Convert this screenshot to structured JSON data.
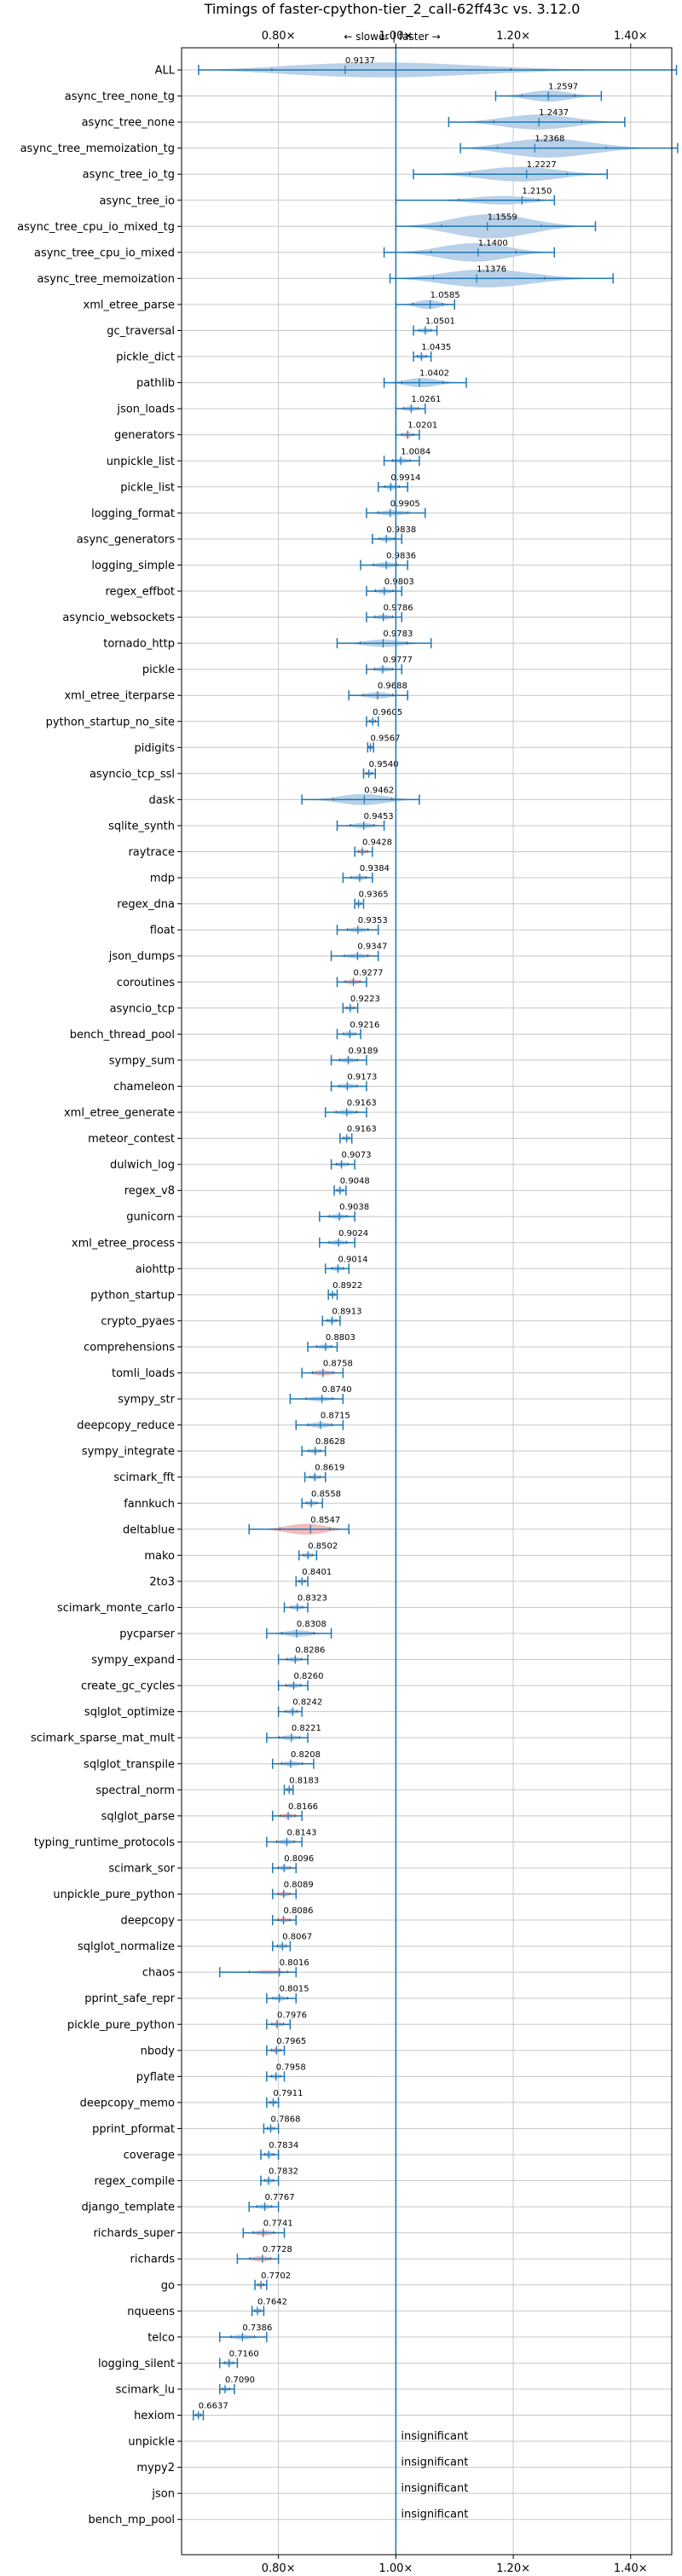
{
  "chart_data": {
    "type": "violin",
    "title": "Timings of faster-cpython-tier_2_call-62ff43c vs. 3.12.0",
    "direction_label": "← slower | faster →",
    "xlim": [
      0.635,
      1.47
    ],
    "xticks": [
      {
        "value": 0.8,
        "label": "0.80×"
      },
      {
        "value": 1.0,
        "label": "1.00×"
      },
      {
        "value": 1.2,
        "label": "1.20×"
      },
      {
        "value": 1.4,
        "label": "1.40×"
      }
    ],
    "grid": true,
    "reference_line": 1.0,
    "colors": {
      "faster": "#b4cfe8",
      "slower": "#f4b6b6",
      "line": "#1f77b4",
      "grid": "#c8c8c8"
    },
    "insignificant_text": "insignificant",
    "rows": [
      {
        "name": "ALL",
        "mean": 0.9137,
        "min": 0.664,
        "max": 1.478,
        "width": 0.09,
        "color": "blue"
      },
      {
        "name": "async_tree_none_tg",
        "mean": 1.2597,
        "min": 1.17,
        "max": 1.35,
        "width": 0.06,
        "color": "blue"
      },
      {
        "name": "async_tree_none",
        "mean": 1.2437,
        "min": 1.09,
        "max": 1.39,
        "width": 0.08,
        "color": "blue"
      },
      {
        "name": "async_tree_memoization_tg",
        "mean": 1.2368,
        "min": 1.11,
        "max": 1.48,
        "width": 0.11,
        "color": "blue"
      },
      {
        "name": "async_tree_io_tg",
        "mean": 1.2227,
        "min": 1.03,
        "max": 1.36,
        "width": 0.08,
        "color": "blue"
      },
      {
        "name": "async_tree_io",
        "mean": 1.215,
        "min": 1.0,
        "max": 1.27,
        "width": 0.06,
        "color": "blue"
      },
      {
        "name": "async_tree_cpu_io_mixed_tg",
        "mean": 1.1559,
        "min": 1.0,
        "max": 1.34,
        "width": 0.13,
        "color": "blue"
      },
      {
        "name": "async_tree_cpu_io_mixed",
        "mean": 1.14,
        "min": 0.98,
        "max": 1.27,
        "width": 0.1,
        "color": "blue"
      },
      {
        "name": "async_tree_memoization",
        "mean": 1.1376,
        "min": 0.99,
        "max": 1.37,
        "width": 0.1,
        "color": "blue"
      },
      {
        "name": "xml_etree_parse",
        "mean": 1.0585,
        "min": 1.0,
        "max": 1.1,
        "width": 0.05,
        "color": "blue"
      },
      {
        "name": "gc_traversal",
        "mean": 1.0501,
        "min": 1.03,
        "max": 1.07,
        "width": 0.025,
        "color": "blue"
      },
      {
        "name": "pickle_dict",
        "mean": 1.0435,
        "min": 1.03,
        "max": 1.06,
        "width": 0.015,
        "color": "blue"
      },
      {
        "name": "pathlib",
        "mean": 1.0402,
        "min": 0.98,
        "max": 1.12,
        "width": 0.05,
        "color": "blue"
      },
      {
        "name": "json_loads",
        "mean": 1.0261,
        "min": 1.0,
        "max": 1.05,
        "width": 0.025,
        "color": "blue"
      },
      {
        "name": "generators",
        "mean": 1.0201,
        "min": 1.0,
        "max": 1.04,
        "width": 0.02,
        "color": "red"
      },
      {
        "name": "unpickle_list",
        "mean": 1.0084,
        "min": 0.98,
        "max": 1.04,
        "width": 0.025,
        "color": "blue"
      },
      {
        "name": "pickle_list",
        "mean": 0.9914,
        "min": 0.97,
        "max": 1.02,
        "width": 0.025,
        "color": "blue"
      },
      {
        "name": "logging_format",
        "mean": 0.9905,
        "min": 0.95,
        "max": 1.05,
        "width": 0.03,
        "color": "blue"
      },
      {
        "name": "async_generators",
        "mean": 0.9838,
        "min": 0.96,
        "max": 1.01,
        "width": 0.025,
        "color": "blue"
      },
      {
        "name": "logging_simple",
        "mean": 0.9836,
        "min": 0.94,
        "max": 1.02,
        "width": 0.03,
        "color": "blue"
      },
      {
        "name": "regex_effbot",
        "mean": 0.9803,
        "min": 0.95,
        "max": 1.01,
        "width": 0.02,
        "color": "blue"
      },
      {
        "name": "asyncio_websockets",
        "mean": 0.9786,
        "min": 0.95,
        "max": 1.01,
        "width": 0.02,
        "color": "blue"
      },
      {
        "name": "tornado_http",
        "mean": 0.9783,
        "min": 0.9,
        "max": 1.06,
        "width": 0.04,
        "color": "blue"
      },
      {
        "name": "pickle",
        "mean": 0.9777,
        "min": 0.95,
        "max": 1.01,
        "width": 0.025,
        "color": "blue"
      },
      {
        "name": "xml_etree_iterparse",
        "mean": 0.9688,
        "min": 0.92,
        "max": 1.02,
        "width": 0.035,
        "color": "blue"
      },
      {
        "name": "python_startup_no_site",
        "mean": 0.9605,
        "min": 0.95,
        "max": 0.97,
        "width": 0.01,
        "color": "blue"
      },
      {
        "name": "pidigits",
        "mean": 0.9567,
        "min": 0.952,
        "max": 0.962,
        "width": 0.006,
        "color": "blue"
      },
      {
        "name": "asyncio_tcp_ssl",
        "mean": 0.954,
        "min": 0.945,
        "max": 0.965,
        "width": 0.008,
        "color": "blue"
      },
      {
        "name": "dask",
        "mean": 0.9462,
        "min": 0.84,
        "max": 1.04,
        "width": 0.06,
        "color": "blue"
      },
      {
        "name": "sqlite_synth",
        "mean": 0.9453,
        "min": 0.9,
        "max": 0.98,
        "width": 0.03,
        "color": "blue"
      },
      {
        "name": "raytrace",
        "mean": 0.9428,
        "min": 0.93,
        "max": 0.96,
        "width": 0.012,
        "color": "red"
      },
      {
        "name": "mdp",
        "mean": 0.9384,
        "min": 0.91,
        "max": 0.96,
        "width": 0.015,
        "color": "blue"
      },
      {
        "name": "regex_dna",
        "mean": 0.9365,
        "min": 0.93,
        "max": 0.945,
        "width": 0.01,
        "color": "blue"
      },
      {
        "name": "float",
        "mean": 0.9353,
        "min": 0.9,
        "max": 0.97,
        "width": 0.025,
        "color": "blue"
      },
      {
        "name": "json_dumps",
        "mean": 0.9347,
        "min": 0.89,
        "max": 0.97,
        "width": 0.025,
        "color": "blue"
      },
      {
        "name": "coroutines",
        "mean": 0.9277,
        "min": 0.9,
        "max": 0.95,
        "width": 0.025,
        "color": "red"
      },
      {
        "name": "asyncio_tcp",
        "mean": 0.9223,
        "min": 0.91,
        "max": 0.935,
        "width": 0.01,
        "color": "blue"
      },
      {
        "name": "bench_thread_pool",
        "mean": 0.9216,
        "min": 0.9,
        "max": 0.94,
        "width": 0.015,
        "color": "blue"
      },
      {
        "name": "sympy_sum",
        "mean": 0.9189,
        "min": 0.89,
        "max": 0.95,
        "width": 0.02,
        "color": "blue"
      },
      {
        "name": "chameleon",
        "mean": 0.9173,
        "min": 0.89,
        "max": 0.95,
        "width": 0.02,
        "color": "blue"
      },
      {
        "name": "xml_etree_generate",
        "mean": 0.9163,
        "min": 0.88,
        "max": 0.95,
        "width": 0.025,
        "color": "blue"
      },
      {
        "name": "meteor_contest",
        "mean": 0.9163,
        "min": 0.905,
        "max": 0.925,
        "width": 0.008,
        "color": "blue"
      },
      {
        "name": "dulwich_log",
        "mean": 0.9073,
        "min": 0.89,
        "max": 0.93,
        "width": 0.015,
        "color": "blue"
      },
      {
        "name": "regex_v8",
        "mean": 0.9048,
        "min": 0.895,
        "max": 0.915,
        "width": 0.008,
        "color": "blue"
      },
      {
        "name": "gunicorn",
        "mean": 0.9038,
        "min": 0.87,
        "max": 0.93,
        "width": 0.02,
        "color": "blue"
      },
      {
        "name": "xml_etree_process",
        "mean": 0.9024,
        "min": 0.87,
        "max": 0.93,
        "width": 0.02,
        "color": "blue"
      },
      {
        "name": "aiohttp",
        "mean": 0.9014,
        "min": 0.88,
        "max": 0.92,
        "width": 0.015,
        "color": "blue"
      },
      {
        "name": "python_startup",
        "mean": 0.8922,
        "min": 0.885,
        "max": 0.9,
        "width": 0.006,
        "color": "blue"
      },
      {
        "name": "crypto_pyaes",
        "mean": 0.8913,
        "min": 0.875,
        "max": 0.905,
        "width": 0.01,
        "color": "blue"
      },
      {
        "name": "comprehensions",
        "mean": 0.8803,
        "min": 0.85,
        "max": 0.9,
        "width": 0.02,
        "color": "blue"
      },
      {
        "name": "tomli_loads",
        "mean": 0.8758,
        "min": 0.84,
        "max": 0.91,
        "width": 0.03,
        "color": "red"
      },
      {
        "name": "sympy_str",
        "mean": 0.874,
        "min": 0.82,
        "max": 0.91,
        "width": 0.02,
        "color": "blue"
      },
      {
        "name": "deepcopy_reduce",
        "mean": 0.8715,
        "min": 0.83,
        "max": 0.91,
        "width": 0.03,
        "color": "blue"
      },
      {
        "name": "sympy_integrate",
        "mean": 0.8628,
        "min": 0.84,
        "max": 0.88,
        "width": 0.015,
        "color": "blue"
      },
      {
        "name": "scimark_fft",
        "mean": 0.8619,
        "min": 0.845,
        "max": 0.88,
        "width": 0.015,
        "color": "blue"
      },
      {
        "name": "fannkuch",
        "mean": 0.8558,
        "min": 0.84,
        "max": 0.875,
        "width": 0.015,
        "color": "blue"
      },
      {
        "name": "deltablue",
        "mean": 0.8547,
        "min": 0.75,
        "max": 0.92,
        "width": 0.06,
        "color": "red"
      },
      {
        "name": "mako",
        "mean": 0.8502,
        "min": 0.835,
        "max": 0.865,
        "width": 0.01,
        "color": "blue"
      },
      {
        "name": "2to3",
        "mean": 0.8401,
        "min": 0.83,
        "max": 0.85,
        "width": 0.008,
        "color": "blue"
      },
      {
        "name": "scimark_monte_carlo",
        "mean": 0.8323,
        "min": 0.81,
        "max": 0.85,
        "width": 0.015,
        "color": "blue"
      },
      {
        "name": "pycparser",
        "mean": 0.8308,
        "min": 0.78,
        "max": 0.89,
        "width": 0.035,
        "color": "blue"
      },
      {
        "name": "sympy_expand",
        "mean": 0.8286,
        "min": 0.8,
        "max": 0.85,
        "width": 0.015,
        "color": "blue"
      },
      {
        "name": "create_gc_cycles",
        "mean": 0.826,
        "min": 0.8,
        "max": 0.85,
        "width": 0.02,
        "color": "blue"
      },
      {
        "name": "sqlglot_optimize",
        "mean": 0.8242,
        "min": 0.8,
        "max": 0.84,
        "width": 0.015,
        "color": "blue"
      },
      {
        "name": "scimark_sparse_mat_mult",
        "mean": 0.8221,
        "min": 0.78,
        "max": 0.85,
        "width": 0.02,
        "color": "blue"
      },
      {
        "name": "sqlglot_transpile",
        "mean": 0.8208,
        "min": 0.79,
        "max": 0.86,
        "width": 0.025,
        "color": "blue"
      },
      {
        "name": "spectral_norm",
        "mean": 0.8183,
        "min": 0.81,
        "max": 0.825,
        "width": 0.006,
        "color": "blue"
      },
      {
        "name": "sqlglot_parse",
        "mean": 0.8166,
        "min": 0.79,
        "max": 0.84,
        "width": 0.02,
        "color": "red"
      },
      {
        "name": "typing_runtime_protocols",
        "mean": 0.8143,
        "min": 0.78,
        "max": 0.84,
        "width": 0.02,
        "color": "blue"
      },
      {
        "name": "scimark_sor",
        "mean": 0.8096,
        "min": 0.79,
        "max": 0.83,
        "width": 0.015,
        "color": "blue"
      },
      {
        "name": "unpickle_pure_python",
        "mean": 0.8089,
        "min": 0.79,
        "max": 0.83,
        "width": 0.015,
        "color": "red"
      },
      {
        "name": "deepcopy",
        "mean": 0.8086,
        "min": 0.79,
        "max": 0.83,
        "width": 0.015,
        "color": "red"
      },
      {
        "name": "sqlglot_normalize",
        "mean": 0.8067,
        "min": 0.79,
        "max": 0.82,
        "width": 0.012,
        "color": "blue"
      },
      {
        "name": "chaos",
        "mean": 0.8016,
        "min": 0.7,
        "max": 0.83,
        "width": 0.025,
        "color": "red"
      },
      {
        "name": "pprint_safe_repr",
        "mean": 0.8015,
        "min": 0.78,
        "max": 0.83,
        "width": 0.02,
        "color": "blue"
      },
      {
        "name": "pickle_pure_python",
        "mean": 0.7976,
        "min": 0.78,
        "max": 0.82,
        "width": 0.02,
        "color": "red"
      },
      {
        "name": "nbody",
        "mean": 0.7965,
        "min": 0.78,
        "max": 0.81,
        "width": 0.015,
        "color": "red"
      },
      {
        "name": "pyflate",
        "mean": 0.7958,
        "min": 0.78,
        "max": 0.81,
        "width": 0.012,
        "color": "blue"
      },
      {
        "name": "deepcopy_memo",
        "mean": 0.7911,
        "min": 0.78,
        "max": 0.8,
        "width": 0.01,
        "color": "blue"
      },
      {
        "name": "pprint_pformat",
        "mean": 0.7868,
        "min": 0.775,
        "max": 0.8,
        "width": 0.01,
        "color": "blue"
      },
      {
        "name": "coverage",
        "mean": 0.7834,
        "min": 0.77,
        "max": 0.8,
        "width": 0.01,
        "color": "blue"
      },
      {
        "name": "regex_compile",
        "mean": 0.7832,
        "min": 0.77,
        "max": 0.8,
        "width": 0.012,
        "color": "blue"
      },
      {
        "name": "django_template",
        "mean": 0.7767,
        "min": 0.75,
        "max": 0.8,
        "width": 0.02,
        "color": "blue"
      },
      {
        "name": "richards_super",
        "mean": 0.7741,
        "min": 0.74,
        "max": 0.81,
        "width": 0.025,
        "color": "red"
      },
      {
        "name": "richards",
        "mean": 0.7728,
        "min": 0.73,
        "max": 0.8,
        "width": 0.03,
        "color": "red"
      },
      {
        "name": "go",
        "mean": 0.7702,
        "min": 0.76,
        "max": 0.78,
        "width": 0.012,
        "color": "red"
      },
      {
        "name": "nqueens",
        "mean": 0.7642,
        "min": 0.755,
        "max": 0.775,
        "width": 0.01,
        "color": "blue"
      },
      {
        "name": "telco",
        "mean": 0.7386,
        "min": 0.7,
        "max": 0.78,
        "width": 0.025,
        "color": "blue"
      },
      {
        "name": "logging_silent",
        "mean": 0.716,
        "min": 0.7,
        "max": 0.73,
        "width": 0.01,
        "color": "blue"
      },
      {
        "name": "scimark_lu",
        "mean": 0.709,
        "min": 0.7,
        "max": 0.725,
        "width": 0.01,
        "color": "blue"
      },
      {
        "name": "hexiom",
        "mean": 0.6637,
        "min": 0.655,
        "max": 0.672,
        "width": 0.008,
        "color": "blue"
      },
      {
        "name": "unpickle",
        "insignificant": true
      },
      {
        "name": "mypy2",
        "insignificant": true
      },
      {
        "name": "json",
        "insignificant": true
      },
      {
        "name": "bench_mp_pool",
        "insignificant": true
      }
    ]
  }
}
